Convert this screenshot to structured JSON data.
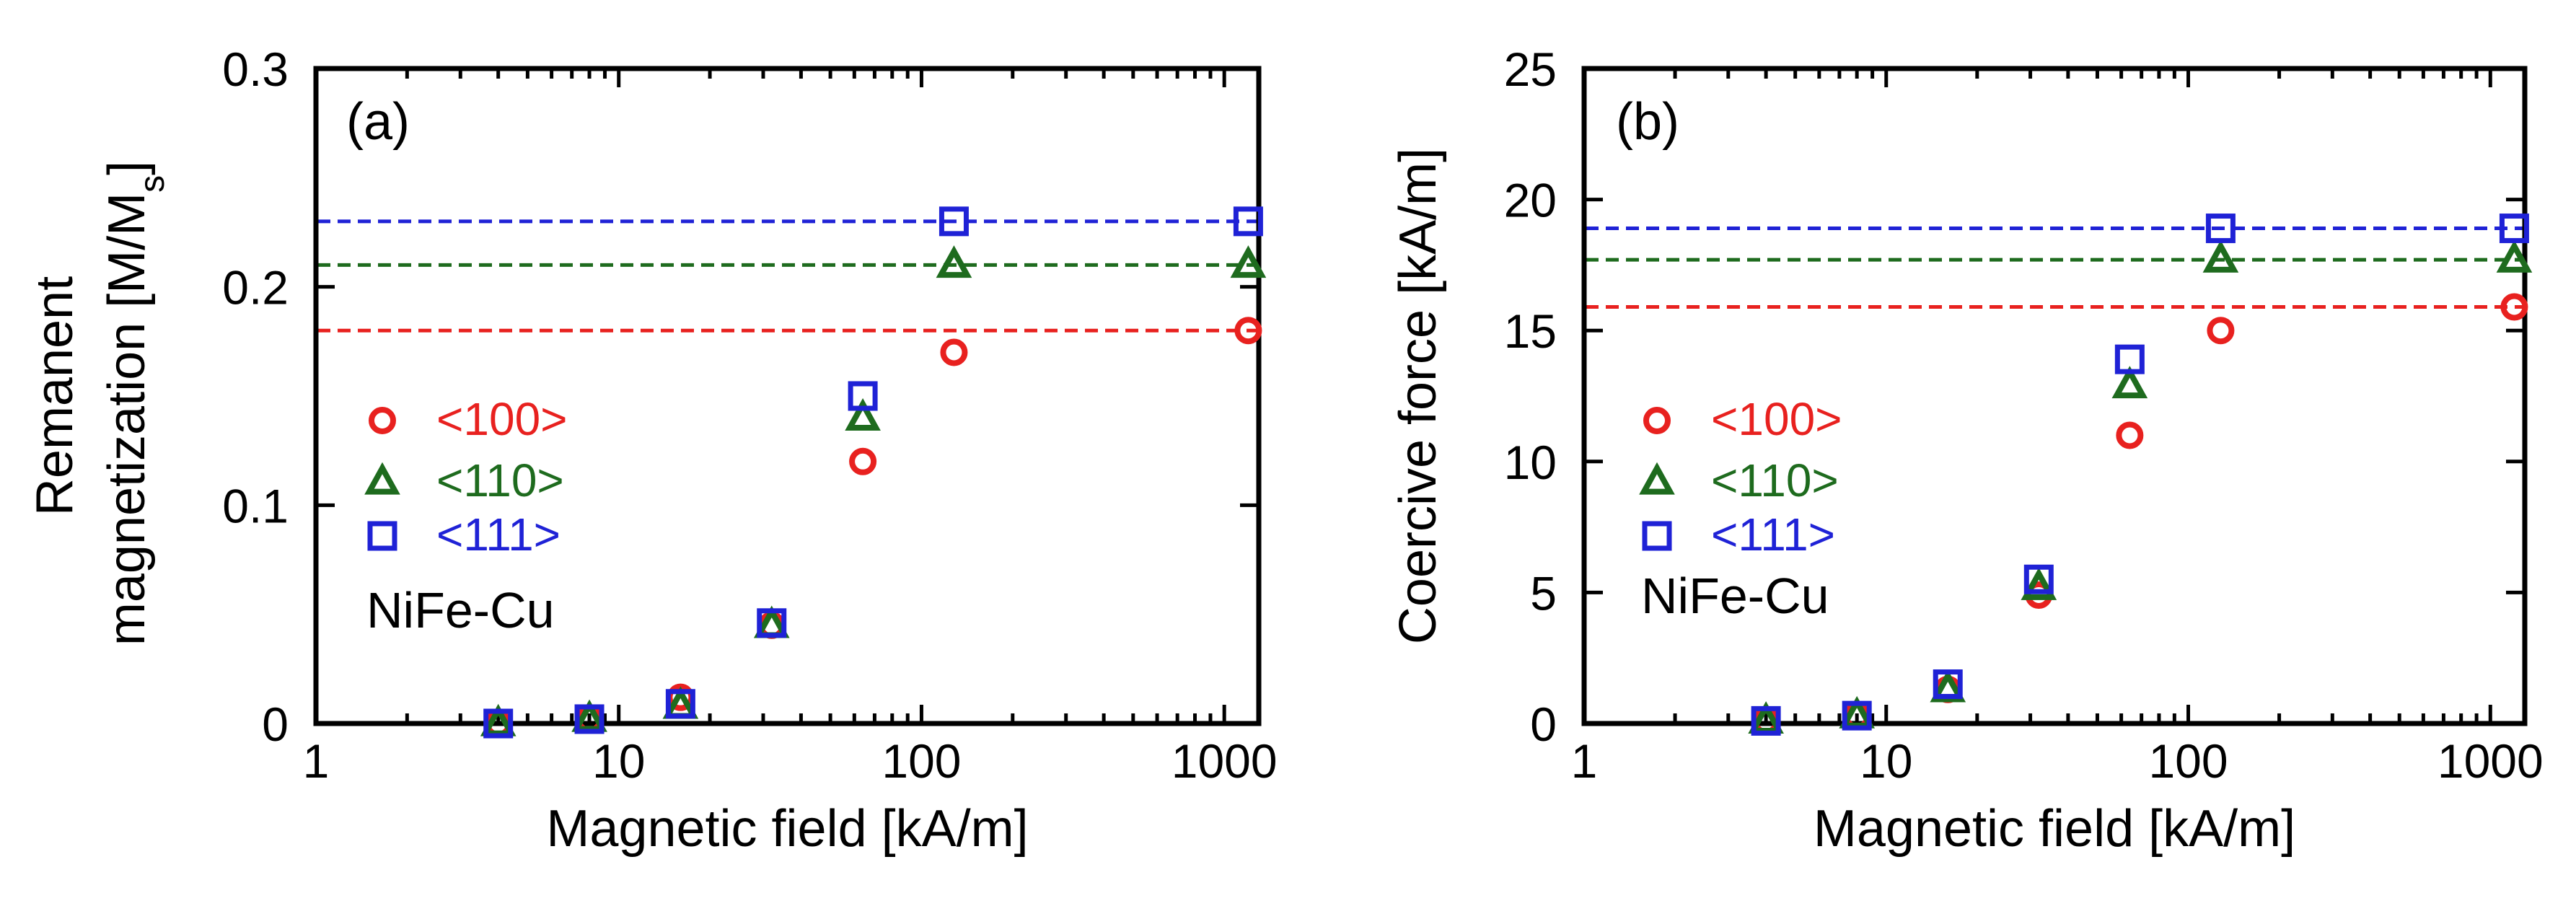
{
  "colors": {
    "series_100": "#e8211f",
    "series_110": "#1e6b1e",
    "series_111": "#1f22d6",
    "axis": "#000000"
  },
  "chart_data": [
    {
      "type": "scatter",
      "panel_label": "(a)",
      "annotation": "NiFe-Cu",
      "xlabel": "Magnetic field [kA/m]",
      "ylabel_line1": "Remanent",
      "ylabel_line2": "magnetization [M/M",
      "ylabel_sub": "s",
      "ylabel_tail": "]",
      "xscale": "log",
      "xlim": [
        1,
        1300
      ],
      "ylim": [
        0,
        0.3
      ],
      "xticks": [
        1,
        10,
        100,
        1000
      ],
      "xtick_labels": [
        "1",
        "10",
        "100",
        "1000"
      ],
      "yticks": [
        0,
        0.1,
        0.2,
        0.3
      ],
      "ytick_labels": [
        "0",
        "0.1",
        "0.2",
        "0.3"
      ],
      "legend_position": "center-left",
      "series": [
        {
          "key": "100",
          "name": "<100>",
          "marker": "circle",
          "x": [
            4,
            8,
            16,
            32,
            64,
            128,
            1200
          ],
          "y": [
            0.0,
            0.002,
            0.012,
            0.045,
            0.12,
            0.17,
            0.18
          ],
          "saturation": 0.18
        },
        {
          "key": "110",
          "name": "<110>",
          "marker": "triangle",
          "x": [
            4,
            8,
            16,
            32,
            64,
            128,
            1200
          ],
          "y": [
            0.0,
            0.002,
            0.008,
            0.045,
            0.14,
            0.21,
            0.21
          ],
          "saturation": 0.21
        },
        {
          "key": "111",
          "name": "<111>",
          "marker": "square",
          "x": [
            4,
            8,
            16,
            32,
            64,
            128,
            1200
          ],
          "y": [
            0.0,
            0.002,
            0.009,
            0.046,
            0.15,
            0.23,
            0.23
          ],
          "saturation": 0.23
        }
      ]
    },
    {
      "type": "scatter",
      "panel_label": "(b)",
      "annotation": "NiFe-Cu",
      "xlabel": "Magnetic field [kA/m]",
      "ylabel_line1": "Coercive force [kA/m]",
      "xscale": "log",
      "xlim": [
        1,
        1300
      ],
      "ylim": [
        0,
        25
      ],
      "xticks": [
        1,
        10,
        100,
        1000
      ],
      "xtick_labels": [
        "1",
        "10",
        "100",
        "1000"
      ],
      "yticks": [
        0,
        5,
        10,
        15,
        20,
        25
      ],
      "ytick_labels": [
        "0",
        "5",
        "10",
        "15",
        "20",
        "25"
      ],
      "legend_position": "center-left",
      "series": [
        {
          "key": "100",
          "name": "<100>",
          "marker": "circle",
          "x": [
            4,
            8,
            16,
            32,
            64,
            128,
            1200
          ],
          "y": [
            0.1,
            0.3,
            1.3,
            4.9,
            11.0,
            15.0,
            15.9
          ],
          "saturation": 15.9
        },
        {
          "key": "110",
          "name": "<110>",
          "marker": "triangle",
          "x": [
            4,
            8,
            16,
            32,
            64,
            128,
            1200
          ],
          "y": [
            0.1,
            0.3,
            1.3,
            5.2,
            12.9,
            17.7,
            17.7
          ],
          "saturation": 17.7
        },
        {
          "key": "111",
          "name": "<111>",
          "marker": "square",
          "x": [
            4,
            8,
            16,
            32,
            64,
            128,
            1200
          ],
          "y": [
            0.1,
            0.3,
            1.5,
            5.5,
            13.9,
            18.9,
            18.9
          ],
          "saturation": 18.9
        }
      ]
    }
  ]
}
